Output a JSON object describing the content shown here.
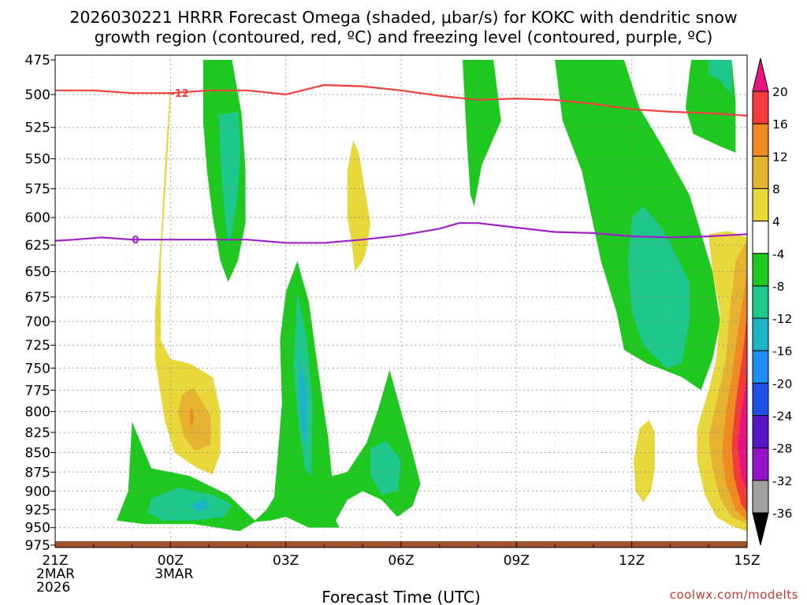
{
  "chart_data": {
    "type": "contour",
    "title_line1": "2026030221 HRRR Forecast Omega (shaded, μbar/s) for KOKC with dendritic snow",
    "title_line2": "growth region (contoured, red, ºC) and freezing level (contoured, purple, ºC)",
    "xlabel": "Forecast Time (UTC)",
    "credit": "coolwx.com/modelts",
    "x_range_hours": [
      0,
      18
    ],
    "x_ticks": [
      {
        "hour": 0,
        "label": "21Z",
        "sub": [
          "2MAR",
          "2026"
        ]
      },
      {
        "hour": 3,
        "label": "00Z",
        "sub": [
          "3MAR"
        ]
      },
      {
        "hour": 6,
        "label": "03Z",
        "sub": []
      },
      {
        "hour": 9,
        "label": "06Z",
        "sub": []
      },
      {
        "hour": 12,
        "label": "09Z",
        "sub": []
      },
      {
        "hour": 15,
        "label": "12Z",
        "sub": []
      },
      {
        "hour": 18,
        "label": "15Z",
        "sub": []
      }
    ],
    "y_range_hpa": [
      975,
      475
    ],
    "y_ticks": [
      475,
      500,
      525,
      550,
      575,
      600,
      625,
      650,
      675,
      700,
      725,
      750,
      775,
      800,
      825,
      850,
      875,
      900,
      925,
      950,
      975
    ],
    "colorbar": {
      "levels": [
        "20",
        "16",
        "12",
        "8",
        "4",
        "-4",
        "-8",
        "-12",
        "-16",
        "-20",
        "-24",
        "-28",
        "-32",
        "-36"
      ],
      "colors": [
        "#e8137e",
        "#f23c3c",
        "#f08a23",
        "#e6b232",
        "#e8d83c",
        "#ffffff",
        "#1ec81e",
        "#1ec88c",
        "#1eb4c8",
        "#1e8cf0",
        "#1e50e6",
        "#5a14c8",
        "#9614c8",
        "#a0a0a0",
        "#000000"
      ]
    },
    "dgz_line": {
      "label": "-12",
      "color": "#f04040",
      "points": [
        [
          0,
          497
        ],
        [
          1,
          497
        ],
        [
          2,
          499
        ],
        [
          3,
          499
        ],
        [
          4,
          497
        ],
        [
          5,
          497
        ],
        [
          6,
          500
        ],
        [
          7,
          493
        ],
        [
          8,
          494
        ],
        [
          9,
          497
        ],
        [
          10,
          501
        ],
        [
          11,
          504
        ],
        [
          12,
          503
        ],
        [
          13,
          504
        ],
        [
          14,
          507
        ],
        [
          15,
          511
        ],
        [
          16,
          513
        ],
        [
          17,
          514
        ],
        [
          18,
          516
        ]
      ]
    },
    "freezing_line": {
      "label": "0",
      "color": "#a020c8",
      "points": [
        [
          0,
          621
        ],
        [
          0.5,
          620
        ],
        [
          1.2,
          618
        ],
        [
          2,
          620
        ],
        [
          3,
          620
        ],
        [
          4,
          620
        ],
        [
          5,
          620
        ],
        [
          6,
          623
        ],
        [
          7,
          623
        ],
        [
          8,
          620
        ],
        [
          9,
          616
        ],
        [
          10,
          610
        ],
        [
          10.5,
          605
        ],
        [
          11,
          605
        ],
        [
          12,
          609
        ],
        [
          13,
          613
        ],
        [
          14,
          614
        ],
        [
          15,
          617
        ],
        [
          16,
          618
        ],
        [
          17,
          617
        ],
        [
          18,
          615
        ]
      ]
    },
    "shaded_regions": [
      {
        "level": "-4",
        "points": [
          [
            3.85,
            475
          ],
          [
            4.6,
            475
          ],
          [
            4.85,
            515
          ],
          [
            4.95,
            560
          ],
          [
            4.95,
            605
          ],
          [
            4.75,
            640
          ],
          [
            4.5,
            660
          ],
          [
            4.3,
            640
          ],
          [
            4.1,
            600
          ],
          [
            3.95,
            560
          ],
          [
            3.85,
            520
          ]
        ]
      },
      {
        "level": "-8",
        "points": [
          [
            4.25,
            515
          ],
          [
            4.75,
            513
          ],
          [
            4.82,
            540
          ],
          [
            4.75,
            580
          ],
          [
            4.6,
            615
          ],
          [
            4.5,
            625
          ],
          [
            4.42,
            600
          ],
          [
            4.33,
            565
          ]
        ]
      },
      {
        "level": "-4",
        "points": [
          [
            10.6,
            475
          ],
          [
            11.4,
            475
          ],
          [
            11.6,
            520
          ],
          [
            11.1,
            555
          ],
          [
            10.9,
            590
          ],
          [
            10.8,
            580
          ],
          [
            10.7,
            530
          ]
        ]
      },
      {
        "level": "-4",
        "points": [
          [
            13.0,
            475
          ],
          [
            14.8,
            475
          ],
          [
            15.2,
            510
          ],
          [
            15.8,
            540
          ],
          [
            16.5,
            580
          ],
          [
            17.1,
            650
          ],
          [
            17.3,
            700
          ],
          [
            17.1,
            740
          ],
          [
            16.8,
            775
          ],
          [
            16.3,
            760
          ],
          [
            15.4,
            745
          ],
          [
            14.8,
            730
          ],
          [
            14.6,
            690
          ],
          [
            14.2,
            640
          ],
          [
            13.7,
            560
          ],
          [
            13.2,
            520
          ]
        ]
      },
      {
        "level": "-8",
        "points": [
          [
            15.0,
            600
          ],
          [
            15.3,
            590
          ],
          [
            15.8,
            610
          ],
          [
            16.5,
            660
          ],
          [
            16.5,
            700
          ],
          [
            16.3,
            745
          ],
          [
            15.9,
            750
          ],
          [
            15.3,
            725
          ],
          [
            15.0,
            690
          ],
          [
            14.9,
            640
          ]
        ]
      },
      {
        "level": "-4",
        "points": [
          [
            16.55,
            475
          ],
          [
            17.6,
            475
          ],
          [
            17.7,
            505
          ],
          [
            17.7,
            545
          ],
          [
            17.3,
            540
          ],
          [
            16.6,
            530
          ],
          [
            16.4,
            510
          ],
          [
            16.5,
            485
          ]
        ]
      },
      {
        "level": "-8",
        "points": [
          [
            17.0,
            475
          ],
          [
            17.6,
            475
          ],
          [
            17.6,
            500
          ],
          [
            17.3,
            490
          ],
          [
            17.0,
            485
          ]
        ]
      },
      {
        "level": "4",
        "points": [
          [
            3.0,
            490
          ],
          [
            3.0,
            505
          ],
          [
            2.9,
            560
          ],
          [
            2.75,
            640
          ],
          [
            2.75,
            720
          ],
          [
            3.0,
            740
          ],
          [
            3.5,
            745
          ],
          [
            4.1,
            760
          ],
          [
            4.3,
            800
          ],
          [
            4.3,
            850
          ],
          [
            4.1,
            878
          ],
          [
            3.7,
            870
          ],
          [
            3.1,
            850
          ],
          [
            2.85,
            810
          ],
          [
            2.6,
            740
          ],
          [
            2.6,
            690
          ],
          [
            2.75,
            620
          ],
          [
            2.85,
            560
          ]
        ]
      },
      {
        "level": "8",
        "points": [
          [
            3.3,
            780
          ],
          [
            3.6,
            772
          ],
          [
            4.05,
            805
          ],
          [
            4.05,
            840
          ],
          [
            3.65,
            848
          ],
          [
            3.35,
            830
          ],
          [
            3.2,
            800
          ]
        ]
      },
      {
        "level": "12",
        "points": [
          [
            3.55,
            795
          ],
          [
            3.6,
            800
          ],
          [
            3.6,
            810
          ],
          [
            3.55,
            820
          ],
          [
            3.5,
            810
          ],
          [
            3.5,
            800
          ]
        ]
      },
      {
        "level": "4",
        "points": [
          [
            7.6,
            560
          ],
          [
            7.75,
            535
          ],
          [
            7.9,
            545
          ],
          [
            8.2,
            605
          ],
          [
            8.1,
            630
          ],
          [
            8.0,
            640
          ],
          [
            7.8,
            650
          ],
          [
            7.7,
            620
          ],
          [
            7.6,
            600
          ]
        ]
      },
      {
        "level": "-4",
        "points": [
          [
            2.0,
            812
          ],
          [
            2.5,
            870
          ],
          [
            3.5,
            880
          ],
          [
            4.5,
            905
          ],
          [
            5.0,
            930
          ],
          [
            5.2,
            940
          ],
          [
            5.5,
            925
          ],
          [
            5.7,
            908
          ],
          [
            5.8,
            848
          ],
          [
            5.9,
            790
          ],
          [
            5.85,
            720
          ],
          [
            6.0,
            670
          ],
          [
            6.3,
            640
          ],
          [
            6.6,
            680
          ],
          [
            6.8,
            740
          ],
          [
            7.0,
            800
          ],
          [
            7.1,
            830
          ],
          [
            7.2,
            880
          ],
          [
            7.6,
            875
          ],
          [
            8.1,
            838
          ],
          [
            8.4,
            798
          ],
          [
            8.7,
            752
          ],
          [
            9.0,
            800
          ],
          [
            9.3,
            850
          ],
          [
            9.5,
            890
          ],
          [
            9.3,
            920
          ],
          [
            8.9,
            935
          ],
          [
            8.5,
            912
          ],
          [
            8.0,
            900
          ],
          [
            7.6,
            912
          ],
          [
            7.3,
            940
          ],
          [
            7.4,
            950
          ],
          [
            6.6,
            950
          ],
          [
            6.0,
            935
          ],
          [
            5.6,
            940
          ],
          [
            5.2,
            942
          ],
          [
            4.8,
            955
          ],
          [
            4.2,
            950
          ],
          [
            3.6,
            945
          ],
          [
            3.0,
            945
          ],
          [
            2.3,
            945
          ],
          [
            1.6,
            940
          ],
          [
            1.9,
            900
          ]
        ]
      },
      {
        "level": "-8",
        "points": [
          [
            2.5,
            910
          ],
          [
            3.2,
            895
          ],
          [
            4.1,
            905
          ],
          [
            4.6,
            918
          ],
          [
            4.4,
            935
          ],
          [
            3.6,
            940
          ],
          [
            2.8,
            940
          ],
          [
            2.4,
            930
          ]
        ]
      },
      {
        "level": "-12",
        "points": [
          [
            3.5,
            918
          ],
          [
            3.9,
            912
          ],
          [
            4.0,
            922
          ],
          [
            3.7,
            928
          ]
        ]
      },
      {
        "level": "-8",
        "points": [
          [
            6.3,
            670
          ],
          [
            6.55,
            720
          ],
          [
            6.7,
            790
          ],
          [
            6.65,
            880
          ],
          [
            6.5,
            870
          ],
          [
            6.35,
            820
          ],
          [
            6.2,
            750
          ]
        ]
      },
      {
        "level": "-12",
        "points": [
          [
            6.35,
            740
          ],
          [
            6.55,
            775
          ],
          [
            6.55,
            830
          ],
          [
            6.45,
            840
          ],
          [
            6.35,
            800
          ]
        ]
      },
      {
        "level": "-8",
        "points": [
          [
            8.2,
            845
          ],
          [
            8.6,
            835
          ],
          [
            9.0,
            860
          ],
          [
            8.9,
            900
          ],
          [
            8.5,
            905
          ],
          [
            8.2,
            880
          ]
        ]
      },
      {
        "level": "4",
        "points": [
          [
            15.2,
            820
          ],
          [
            15.45,
            810
          ],
          [
            15.6,
            825
          ],
          [
            15.6,
            870
          ],
          [
            15.5,
            900
          ],
          [
            15.3,
            915
          ],
          [
            15.1,
            900
          ],
          [
            15.05,
            860
          ]
        ]
      },
      {
        "level": "4",
        "points": [
          [
            17.0,
            615
          ],
          [
            17.5,
            612
          ],
          [
            18.0,
            618
          ],
          [
            18.0,
            955
          ],
          [
            17.6,
            948
          ],
          [
            17.2,
            935
          ],
          [
            16.9,
            905
          ],
          [
            16.7,
            860
          ],
          [
            16.7,
            820
          ],
          [
            17.0,
            775
          ],
          [
            17.2,
            740
          ],
          [
            17.3,
            690
          ],
          [
            17.1,
            650
          ]
        ]
      },
      {
        "level": "8",
        "points": [
          [
            17.7,
            640
          ],
          [
            18.0,
            620
          ],
          [
            18.0,
            945
          ],
          [
            17.6,
            935
          ],
          [
            17.3,
            910
          ],
          [
            17.1,
            870
          ],
          [
            17.0,
            830
          ],
          [
            17.2,
            790
          ],
          [
            17.45,
            740
          ],
          [
            17.55,
            690
          ]
        ]
      },
      {
        "level": "12",
        "points": [
          [
            17.8,
            700
          ],
          [
            18.0,
            650
          ],
          [
            18.0,
            940
          ],
          [
            17.7,
            925
          ],
          [
            17.45,
            890
          ],
          [
            17.35,
            850
          ],
          [
            17.45,
            800
          ],
          [
            17.6,
            760
          ]
        ]
      },
      {
        "level": "16",
        "points": [
          [
            17.9,
            730
          ],
          [
            18.0,
            690
          ],
          [
            18.0,
            930
          ],
          [
            17.85,
            918
          ],
          [
            17.65,
            880
          ],
          [
            17.6,
            840
          ],
          [
            17.7,
            790
          ]
        ]
      },
      {
        "level": "20",
        "points": [
          [
            17.95,
            770
          ],
          [
            18.0,
            760
          ],
          [
            18.0,
            900
          ],
          [
            17.85,
            880
          ],
          [
            17.75,
            840
          ],
          [
            17.85,
            800
          ]
        ]
      }
    ]
  }
}
